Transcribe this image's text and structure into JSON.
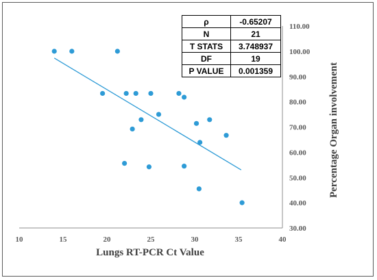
{
  "chart_data": {
    "type": "scatter",
    "title": "",
    "xlabel": "Lungs RT-PCR Ct Value",
    "ylabel": "Percentage Organ involvement",
    "xlim": [
      10,
      40
    ],
    "ylim": [
      30,
      110
    ],
    "x_ticks": [
      "10",
      "15",
      "20",
      "25",
      "30",
      "35",
      "40"
    ],
    "y_ticks": [
      "30.00",
      "40.00",
      "50.00",
      "60.00",
      "70.00",
      "80.00",
      "90.00",
      "100.00",
      "110.00"
    ],
    "y_axis_side": "right",
    "grid": false,
    "legend": "none",
    "marker_color": "#2e9bd6",
    "trendline_color": "#2e9bd6",
    "points": [
      {
        "x": 14.0,
        "y": 100.0
      },
      {
        "x": 16.0,
        "y": 100.0
      },
      {
        "x": 21.2,
        "y": 100.0
      },
      {
        "x": 19.5,
        "y": 83.3
      },
      {
        "x": 22.2,
        "y": 83.3
      },
      {
        "x": 23.3,
        "y": 83.3
      },
      {
        "x": 25.0,
        "y": 83.3
      },
      {
        "x": 28.2,
        "y": 83.3
      },
      {
        "x": 28.8,
        "y": 81.8
      },
      {
        "x": 25.9,
        "y": 75.0
      },
      {
        "x": 23.9,
        "y": 72.9
      },
      {
        "x": 22.9,
        "y": 69.2
      },
      {
        "x": 30.2,
        "y": 71.4
      },
      {
        "x": 31.7,
        "y": 72.9
      },
      {
        "x": 30.6,
        "y": 63.9
      },
      {
        "x": 33.6,
        "y": 66.7
      },
      {
        "x": 22.0,
        "y": 55.6
      },
      {
        "x": 24.8,
        "y": 54.2
      },
      {
        "x": 28.8,
        "y": 54.5
      },
      {
        "x": 30.5,
        "y": 45.5
      },
      {
        "x": 35.4,
        "y": 40.0
      }
    ],
    "trendline": {
      "x": [
        14.0,
        35.3
      ],
      "y": [
        97.3,
        53.0
      ]
    }
  },
  "stats_table": [
    {
      "label": "ρ",
      "value": "-0.65207"
    },
    {
      "label": "N",
      "value": "21"
    },
    {
      "label": "T STATS",
      "value": "3.748937"
    },
    {
      "label": "DF",
      "value": "19"
    },
    {
      "label": "P VALUE",
      "value": "0.001359"
    }
  ]
}
